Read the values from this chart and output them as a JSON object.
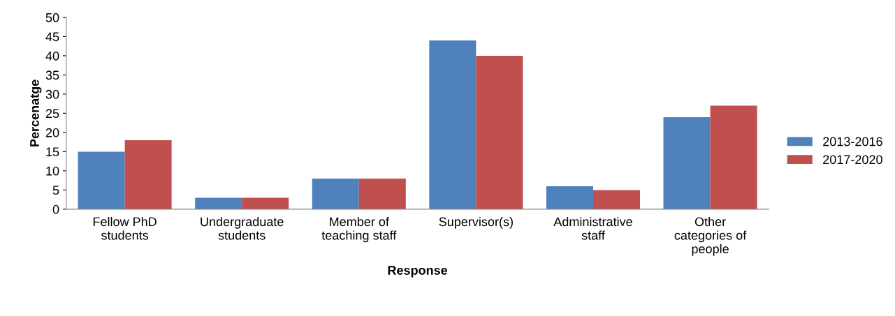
{
  "chart_data": {
    "type": "bar",
    "xlabel": "Response",
    "ylabel": "Percenatge",
    "categories": [
      "Fellow PhD\nstudents",
      "Undergraduate\nstudents",
      "Member of\nteaching staff",
      "Supervisor(s)",
      "Administrative\nstaff",
      "Other\ncategories of\npeople"
    ],
    "series": [
      {
        "name": "2013-2016",
        "color": "#4f81bd",
        "values": [
          15,
          3,
          8,
          44,
          6,
          24
        ]
      },
      {
        "name": "2017-2020",
        "color": "#c0504d",
        "values": [
          18,
          3,
          8,
          40,
          5,
          27
        ]
      }
    ],
    "ylim": [
      0,
      50
    ],
    "yticks": [
      0,
      5,
      10,
      15,
      20,
      25,
      30,
      35,
      40,
      45,
      50
    ],
    "grid": false,
    "legend": "right"
  }
}
